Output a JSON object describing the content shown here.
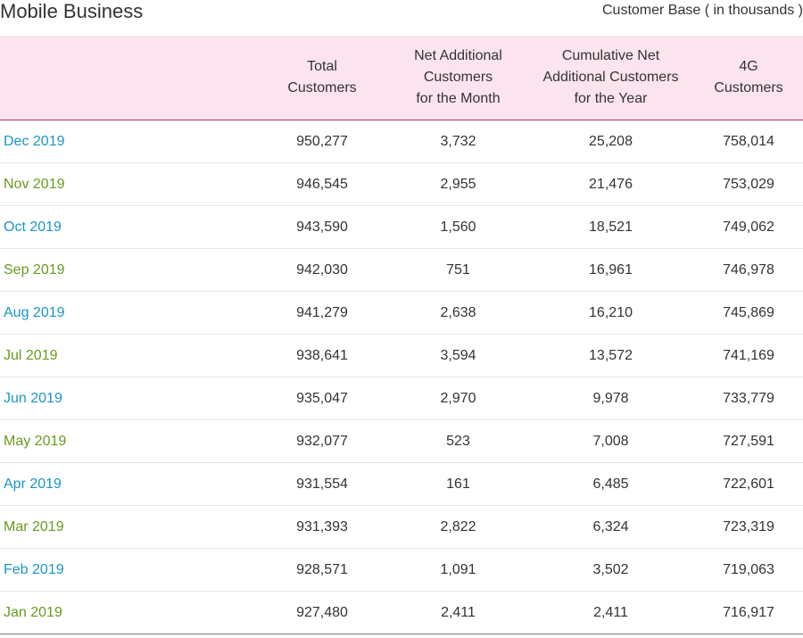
{
  "header": {
    "title": "Mobile Business",
    "unit_note": "Customer Base ( in thousands )"
  },
  "colors": {
    "header_bg": "#fce4ef",
    "header_rule": "#b0316c",
    "month_blue": "#1a95c8",
    "month_green": "#6a9a1f"
  },
  "table": {
    "columns": [
      {
        "label": "",
        "lines": []
      },
      {
        "label": "Total Customers",
        "lines": [
          "Total",
          "Customers"
        ]
      },
      {
        "label": "Net Additional Customers for the Month",
        "lines": [
          "Net Additional",
          "Customers",
          "for the Month"
        ]
      },
      {
        "label": "Cumulative Net Additional Customers for the Year",
        "lines": [
          "Cumulative Net",
          "Additional Customers",
          "for the Year"
        ]
      },
      {
        "label": "4G Customers",
        "lines": [
          "4G",
          "Customers"
        ]
      }
    ],
    "rows": [
      {
        "month": "Dec 2019",
        "color": "blue",
        "total": "950,277",
        "net_month": "3,732",
        "cum_year": "25,208",
        "fourg": "758,014"
      },
      {
        "month": "Nov 2019",
        "color": "green",
        "total": "946,545",
        "net_month": "2,955",
        "cum_year": "21,476",
        "fourg": "753,029"
      },
      {
        "month": "Oct 2019",
        "color": "blue",
        "total": "943,590",
        "net_month": "1,560",
        "cum_year": "18,521",
        "fourg": "749,062"
      },
      {
        "month": "Sep 2019",
        "color": "green",
        "total": "942,030",
        "net_month": "751",
        "cum_year": "16,961",
        "fourg": "746,978"
      },
      {
        "month": "Aug 2019",
        "color": "blue",
        "total": "941,279",
        "net_month": "2,638",
        "cum_year": "16,210",
        "fourg": "745,869"
      },
      {
        "month": "Jul 2019",
        "color": "green",
        "total": "938,641",
        "net_month": "3,594",
        "cum_year": "13,572",
        "fourg": "741,169"
      },
      {
        "month": "Jun 2019",
        "color": "blue",
        "total": "935,047",
        "net_month": "2,970",
        "cum_year": "9,978",
        "fourg": "733,779"
      },
      {
        "month": "May 2019",
        "color": "green",
        "total": "932,077",
        "net_month": "523",
        "cum_year": "7,008",
        "fourg": "727,591"
      },
      {
        "month": "Apr 2019",
        "color": "blue",
        "total": "931,554",
        "net_month": "161",
        "cum_year": "6,485",
        "fourg": "722,601"
      },
      {
        "month": "Mar 2019",
        "color": "green",
        "total": "931,393",
        "net_month": "2,822",
        "cum_year": "6,324",
        "fourg": "723,319"
      },
      {
        "month": "Feb 2019",
        "color": "blue",
        "total": "928,571",
        "net_month": "1,091",
        "cum_year": "3,502",
        "fourg": "719,063"
      },
      {
        "month": "Jan 2019",
        "color": "green",
        "total": "927,480",
        "net_month": "2,411",
        "cum_year": "2,411",
        "fourg": "716,917"
      }
    ]
  }
}
